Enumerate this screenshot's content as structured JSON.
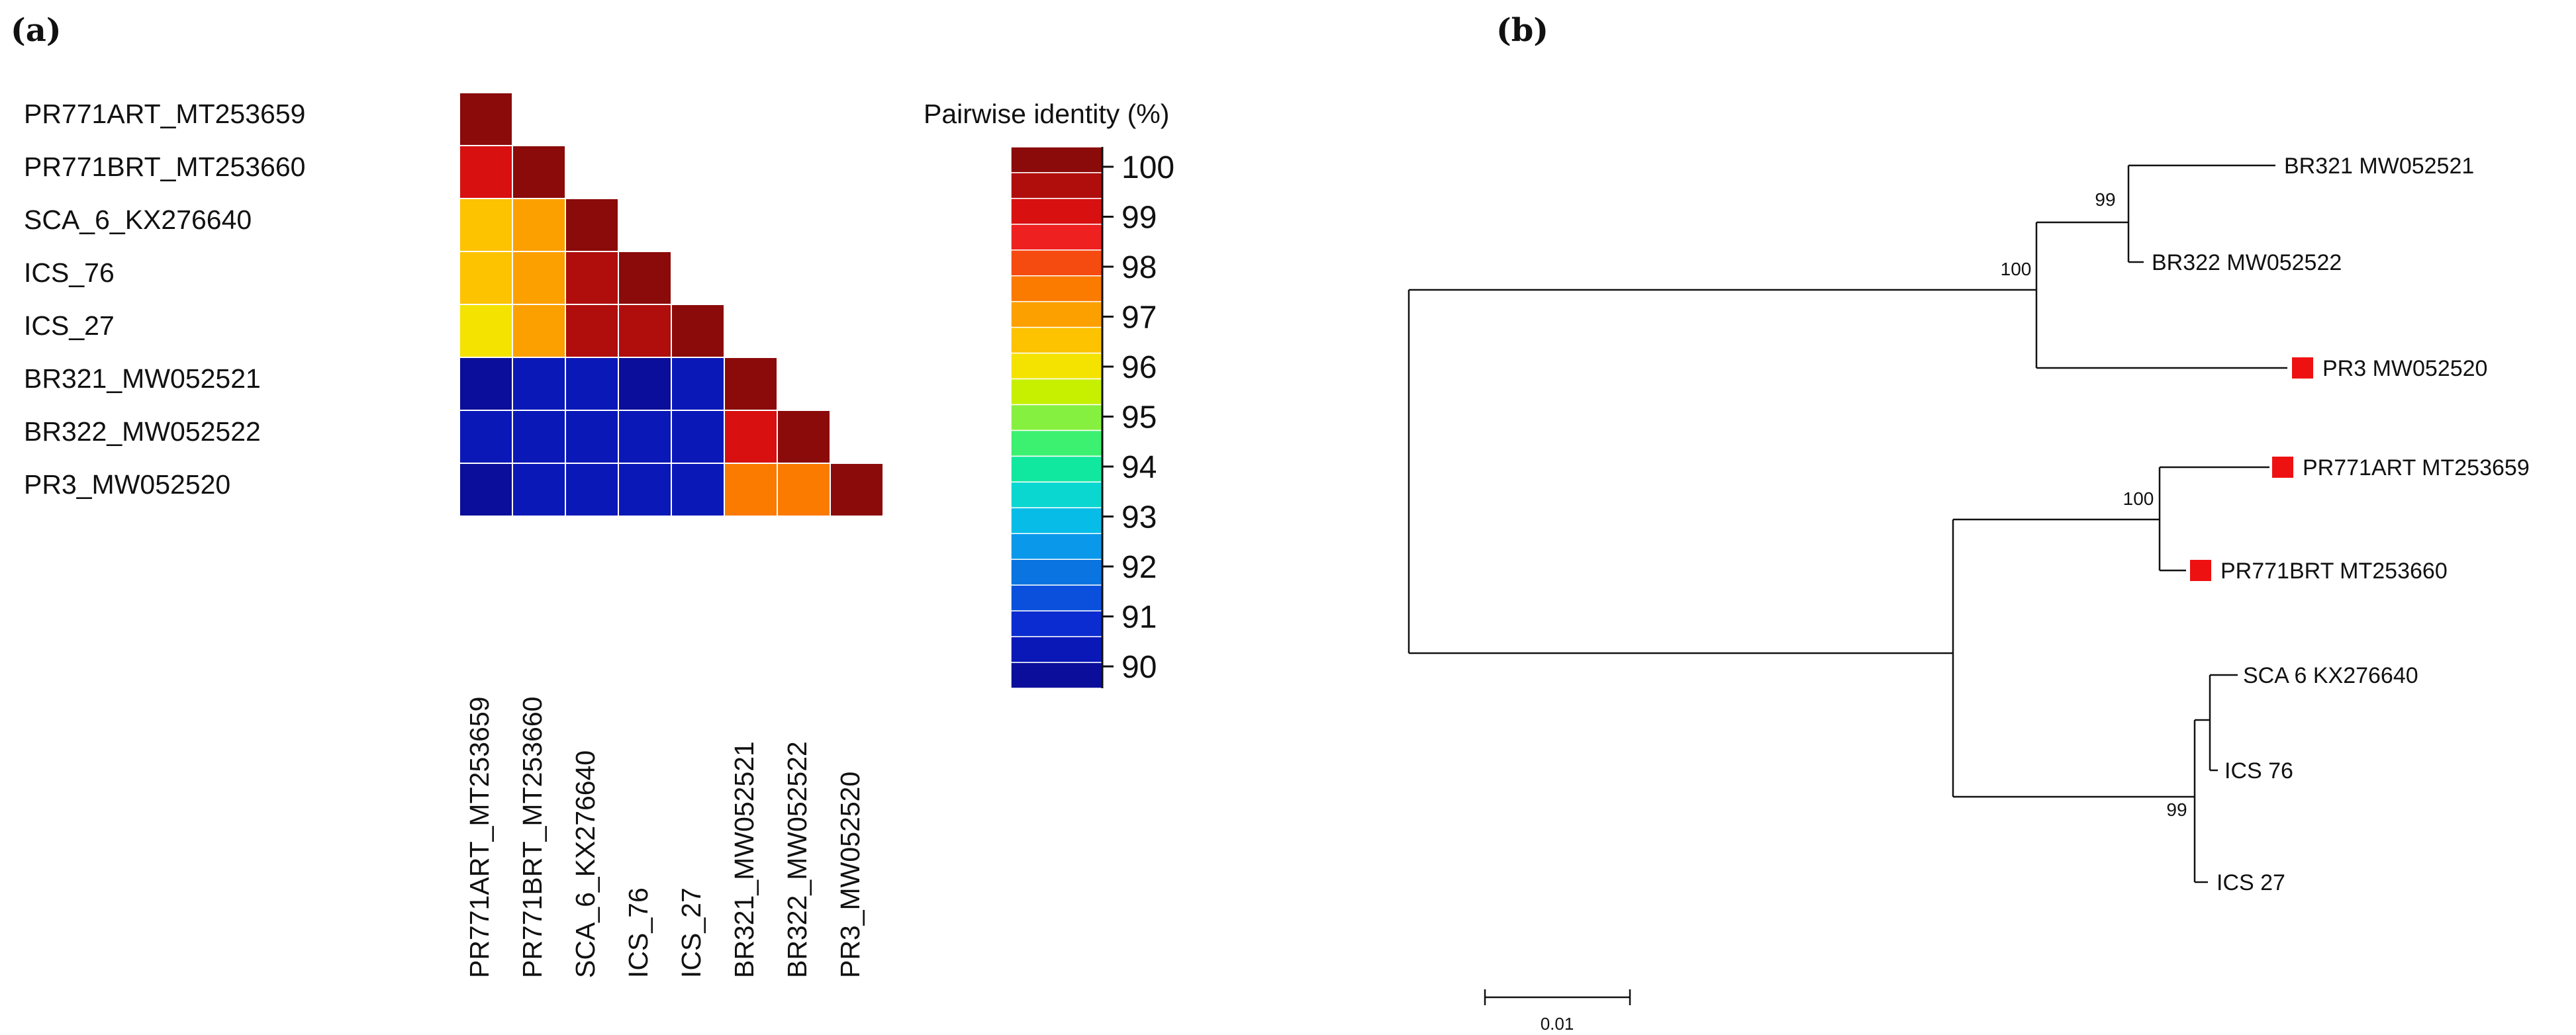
{
  "panel_a": {
    "letter": "(a)",
    "sequences": [
      "PR771ART_MT253659",
      "PR771BRT_MT253660",
      "SCA_6_KX276640",
      "ICS_76",
      "ICS_27",
      "BR321_MW052521",
      "BR322_MW052522",
      "PR3_MW052520"
    ],
    "matrix_percent": [
      [
        100
      ],
      [
        99.0,
        100
      ],
      [
        96.3,
        96.8,
        100
      ],
      [
        96.4,
        96.8,
        99.2,
        100
      ],
      [
        96.0,
        96.8,
        99.1,
        99.2,
        100
      ],
      [
        90.4,
        90.5,
        90.5,
        90.4,
        90.5,
        100
      ],
      [
        90.7,
        90.9,
        90.6,
        90.7,
        90.7,
        98.9,
        100
      ],
      [
        90.4,
        90.6,
        90.5,
        90.5,
        90.6,
        97.2,
        97.6,
        100
      ]
    ],
    "colorbar": {
      "title": "Pairwise identity (%)",
      "ticks": [
        "100",
        "99",
        "98",
        "97",
        "96",
        "95",
        "94",
        "93",
        "92",
        "91",
        "90"
      ],
      "colors": [
        "#8b0a0a",
        "#b00d0d",
        "#d81010",
        "#ee2020",
        "#f54a10",
        "#fb7a00",
        "#fca000",
        "#fdc200",
        "#f4e200",
        "#c6f000",
        "#86f040",
        "#3cf070",
        "#10e8a0",
        "#0ad8d0",
        "#08bce8",
        "#0a98ea",
        "#0a74e0",
        "#0a50dc",
        "#0a2cd0",
        "#0a18b8",
        "#0a0e9a"
      ]
    }
  },
  "panel_b": {
    "letter": "(b)",
    "tips": [
      {
        "label": "BR321 MW052521",
        "marked": false
      },
      {
        "label": "BR322 MW052522",
        "marked": false
      },
      {
        "label": "PR3 MW052520",
        "marked": true
      },
      {
        "label": "PR771ART MT253659",
        "marked": true
      },
      {
        "label": "PR771BRT MT253660",
        "marked": true
      },
      {
        "label": "SCA 6 KX276640",
        "marked": false
      },
      {
        "label": "ICS 76",
        "marked": false
      },
      {
        "label": "ICS 27",
        "marked": false
      }
    ],
    "bootstrap_values": [
      "99",
      "100",
      "100",
      "99"
    ],
    "marker_color": "#ee1111",
    "scale_bar_label": "0.01"
  }
}
